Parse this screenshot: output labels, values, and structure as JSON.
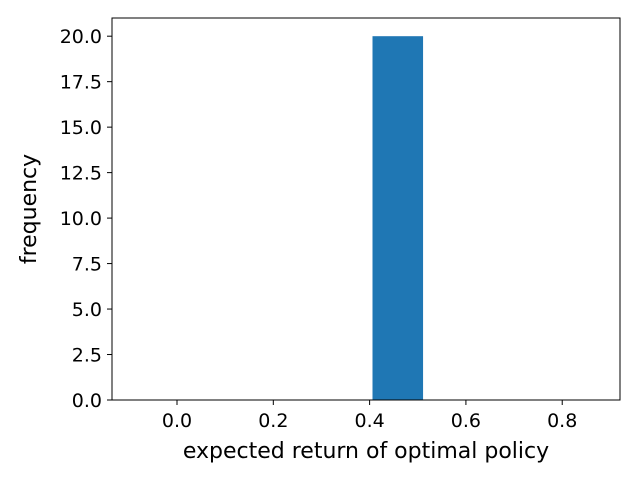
{
  "chart_data": {
    "type": "bar",
    "title": "",
    "xlabel": "expected return of optimal policy",
    "ylabel": "frequency",
    "xlim": [
      -0.135,
      0.92
    ],
    "ylim": [
      0,
      21
    ],
    "xticks": [
      0.0,
      0.2,
      0.4,
      0.6,
      0.8
    ],
    "yticks": [
      0.0,
      2.5,
      5.0,
      7.5,
      10.0,
      12.5,
      15.0,
      17.5,
      20.0
    ],
    "xtick_labels": [
      "0.0",
      "0.2",
      "0.4",
      "0.6",
      "0.8"
    ],
    "ytick_labels": [
      "0.0",
      "2.5",
      "5.0",
      "7.5",
      "10.0",
      "12.5",
      "15.0",
      "17.5",
      "20.0"
    ],
    "bars": [
      {
        "x_start": 0.406,
        "x_end": 0.511,
        "value": 20
      }
    ],
    "grid": false,
    "colors": {
      "bar": "#1f77b4"
    }
  }
}
